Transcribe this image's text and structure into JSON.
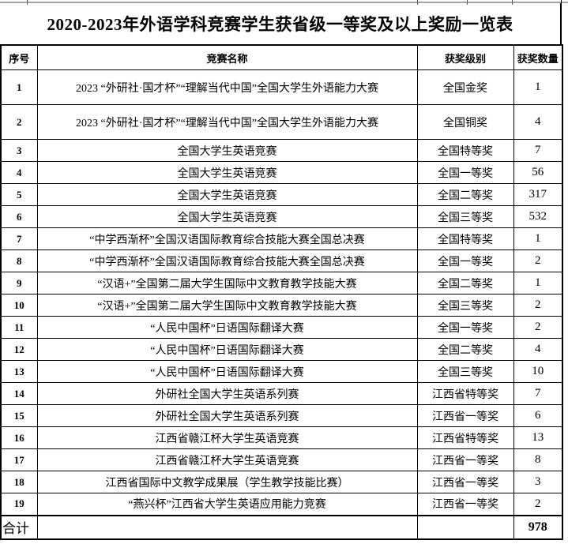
{
  "title": "2020-2023年外语学科竞赛学生获省级一等奖及以上奖励一览表",
  "table": {
    "headers": {
      "no": "序号",
      "name": "竞赛名称",
      "level": "获奖级别",
      "count": "获奖数量"
    },
    "rows": [
      {
        "no": "1",
        "name": "2023 “外研社·国才杯”“理解当代中国”全国大学生外语能力大赛",
        "level": "全国金奖",
        "count": "1"
      },
      {
        "no": "2",
        "name": "2023 “外研社·国才杯”“理解当代中国”全国大学生外语能力大赛",
        "level": "全国铜奖",
        "count": "4"
      },
      {
        "no": "3",
        "name": "全国大学生英语竞赛",
        "level": "全国特等奖",
        "count": "7"
      },
      {
        "no": "4",
        "name": "全国大学生英语竞赛",
        "level": "全国一等奖",
        "count": "56"
      },
      {
        "no": "5",
        "name": "全国大学生英语竞赛",
        "level": "全国二等奖",
        "count": "317"
      },
      {
        "no": "6",
        "name": "全国大学生英语竞赛",
        "level": "全国三等奖",
        "count": "532"
      },
      {
        "no": "7",
        "name": "“中学西渐杯”全国汉语国际教育综合技能大赛全国总决赛",
        "level": "全国特等奖",
        "count": "1"
      },
      {
        "no": "8",
        "name": "“中学西渐杯”全国汉语国际教育综合技能大赛全国总决赛",
        "level": "全国一等奖",
        "count": "2"
      },
      {
        "no": "9",
        "name": "“汉语+”全国第二届大学生国际中文教育教学技能大赛",
        "level": "全国二等奖",
        "count": "1"
      },
      {
        "no": "10",
        "name": "“汉语+”全国第二届大学生国际中文教育教学技能大赛",
        "level": "全国三等奖",
        "count": "2"
      },
      {
        "no": "11",
        "name": "“人民中国杯”日语国际翻译大赛",
        "level": "全国一等奖",
        "count": "2"
      },
      {
        "no": "12",
        "name": "“人民中国杯”日语国际翻译大赛",
        "level": "全国二等奖",
        "count": "4"
      },
      {
        "no": "13",
        "name": "“人民中国杯”日语国际翻译大赛",
        "level": "全国三等奖",
        "count": "10"
      },
      {
        "no": "14",
        "name": "外研社全国大学生英语系列赛",
        "level": "江西省特等奖",
        "count": "7"
      },
      {
        "no": "15",
        "name": "外研社全国大学生英语系列赛",
        "level": "江西省一等奖",
        "count": "6"
      },
      {
        "no": "16",
        "name": "江西省赣江杯大学生英语竞赛",
        "level": "江西省特等奖",
        "count": "13"
      },
      {
        "no": "17",
        "name": "江西省赣江杯大学生英语竞赛",
        "level": "江西省一等奖",
        "count": "8"
      },
      {
        "no": "18",
        "name": "江西省国际中文教学成果展（学生教学技能比赛）",
        "level": "江西省一等奖",
        "count": "3"
      },
      {
        "no": "19",
        "name": "“燕兴杯”江西省大学生英语应用能力竞赛",
        "level": "江西省一等奖",
        "count": "2"
      }
    ],
    "total": {
      "label": "合计",
      "count": "978"
    }
  }
}
